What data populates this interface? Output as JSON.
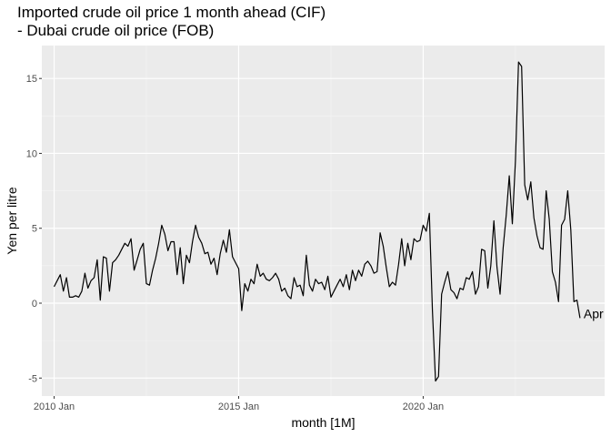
{
  "chart_data": {
    "type": "line",
    "title_lines": [
      "Imported crude oil price 1 month ahead (CIF)",
      "- Dubai crude oil price (FOB)"
    ],
    "xlabel": "month [1M]",
    "ylabel": "Yen per litre",
    "x_ticks": [
      {
        "date": "2010-01",
        "label": "2010 Jan"
      },
      {
        "date": "2015-01",
        "label": "2015 Jan"
      },
      {
        "date": "2020-01",
        "label": "2020 Jan"
      }
    ],
    "y_ticks": [
      -5,
      0,
      5,
      10,
      15
    ],
    "xlim": [
      "2009-09",
      "2024-12"
    ],
    "ylim": [
      -6.2,
      17.2
    ],
    "grid": true,
    "end_label": "Apr",
    "series": [
      {
        "color": "#000000",
        "x": [
          "2010-01",
          "2010-02",
          "2010-03",
          "2010-04",
          "2010-05",
          "2010-06",
          "2010-07",
          "2010-08",
          "2010-09",
          "2010-10",
          "2010-11",
          "2010-12",
          "2011-01",
          "2011-02",
          "2011-03",
          "2011-04",
          "2011-05",
          "2011-06",
          "2011-07",
          "2011-08",
          "2011-09",
          "2011-10",
          "2011-11",
          "2011-12",
          "2012-01",
          "2012-02",
          "2012-03",
          "2012-04",
          "2012-05",
          "2012-06",
          "2012-07",
          "2012-08",
          "2012-09",
          "2012-10",
          "2012-11",
          "2012-12",
          "2013-01",
          "2013-02",
          "2013-03",
          "2013-04",
          "2013-05",
          "2013-06",
          "2013-07",
          "2013-08",
          "2013-09",
          "2013-10",
          "2013-11",
          "2013-12",
          "2014-01",
          "2014-02",
          "2014-03",
          "2014-04",
          "2014-05",
          "2014-06",
          "2014-07",
          "2014-08",
          "2014-09",
          "2014-10",
          "2014-11",
          "2014-12",
          "2015-01",
          "2015-02",
          "2015-03",
          "2015-04",
          "2015-05",
          "2015-06",
          "2015-07",
          "2015-08",
          "2015-09",
          "2015-10",
          "2015-11",
          "2015-12",
          "2016-01",
          "2016-02",
          "2016-03",
          "2016-04",
          "2016-05",
          "2016-06",
          "2016-07",
          "2016-08",
          "2016-09",
          "2016-10",
          "2016-11",
          "2016-12",
          "2017-01",
          "2017-02",
          "2017-03",
          "2017-04",
          "2017-05",
          "2017-06",
          "2017-07",
          "2017-08",
          "2017-09",
          "2017-10",
          "2017-11",
          "2017-12",
          "2018-01",
          "2018-02",
          "2018-03",
          "2018-04",
          "2018-05",
          "2018-06",
          "2018-07",
          "2018-08",
          "2018-09",
          "2018-10",
          "2018-11",
          "2018-12",
          "2019-01",
          "2019-02",
          "2019-03",
          "2019-04",
          "2019-05",
          "2019-06",
          "2019-07",
          "2019-08",
          "2019-09",
          "2019-10",
          "2019-11",
          "2019-12",
          "2020-01",
          "2020-02",
          "2020-03",
          "2020-04",
          "2020-05",
          "2020-06",
          "2020-07",
          "2020-08",
          "2020-09",
          "2020-10",
          "2020-11",
          "2020-12",
          "2021-01",
          "2021-02",
          "2021-03",
          "2021-04",
          "2021-05",
          "2021-06",
          "2021-07",
          "2021-08",
          "2021-09",
          "2021-10",
          "2021-11",
          "2021-12",
          "2022-01",
          "2022-02",
          "2022-03",
          "2022-04",
          "2022-05",
          "2022-06",
          "2022-07",
          "2022-08",
          "2022-09",
          "2022-10",
          "2022-11",
          "2022-12",
          "2023-01",
          "2023-02",
          "2023-03",
          "2023-04",
          "2023-05",
          "2023-06",
          "2023-07",
          "2023-08",
          "2023-09",
          "2023-10",
          "2023-11",
          "2023-12",
          "2024-01",
          "2024-02",
          "2024-03",
          "2024-04"
        ],
        "y": [
          1.1,
          1.5,
          1.9,
          0.8,
          1.7,
          0.4,
          0.4,
          0.5,
          0.4,
          0.8,
          2.0,
          1.0,
          1.5,
          1.7,
          2.9,
          0.2,
          3.1,
          3.0,
          0.8,
          2.7,
          2.9,
          3.2,
          3.6,
          4.0,
          3.8,
          4.3,
          2.2,
          2.9,
          3.6,
          4.0,
          1.3,
          1.2,
          2.2,
          3.0,
          4.0,
          5.2,
          4.6,
          3.5,
          4.1,
          4.1,
          1.9,
          3.7,
          1.3,
          3.2,
          2.7,
          4.1,
          5.2,
          4.4,
          4.0,
          3.3,
          3.4,
          2.6,
          3.0,
          1.9,
          3.3,
          4.2,
          3.4,
          4.9,
          3.1,
          2.7,
          2.3,
          -0.5,
          1.3,
          0.8,
          1.6,
          1.3,
          2.6,
          1.8,
          2.0,
          1.6,
          1.5,
          1.7,
          2.0,
          1.6,
          0.8,
          1.0,
          0.5,
          0.3,
          1.7,
          1.1,
          1.2,
          0.5,
          3.2,
          1.2,
          0.8,
          1.6,
          1.3,
          1.4,
          0.9,
          1.8,
          0.4,
          0.8,
          1.2,
          1.6,
          1.1,
          1.9,
          0.9,
          2.2,
          1.5,
          2.2,
          1.8,
          2.6,
          2.8,
          2.5,
          2.0,
          2.1,
          4.7,
          3.8,
          2.4,
          1.1,
          1.4,
          1.2,
          2.6,
          4.3,
          2.5,
          4.0,
          2.9,
          4.3,
          4.1,
          4.2,
          5.2,
          4.8,
          6.0,
          -0.5,
          -5.2,
          -4.9,
          0.6,
          1.4,
          2.1,
          0.9,
          0.7,
          0.3,
          1.0,
          0.9,
          1.7,
          1.6,
          2.1,
          0.6,
          1.1,
          3.6,
          3.5,
          1.0,
          2.5,
          5.5,
          2.4,
          0.6,
          3.7,
          5.9,
          8.5,
          5.3,
          9.5,
          16.1,
          15.8,
          7.9,
          6.9,
          8.1,
          5.7,
          4.5,
          3.7,
          3.6,
          7.5,
          5.6,
          2.1,
          1.4,
          0.1,
          5.2,
          5.6,
          7.5,
          4.9,
          0.1,
          0.2,
          -1.0
        ]
      }
    ]
  }
}
